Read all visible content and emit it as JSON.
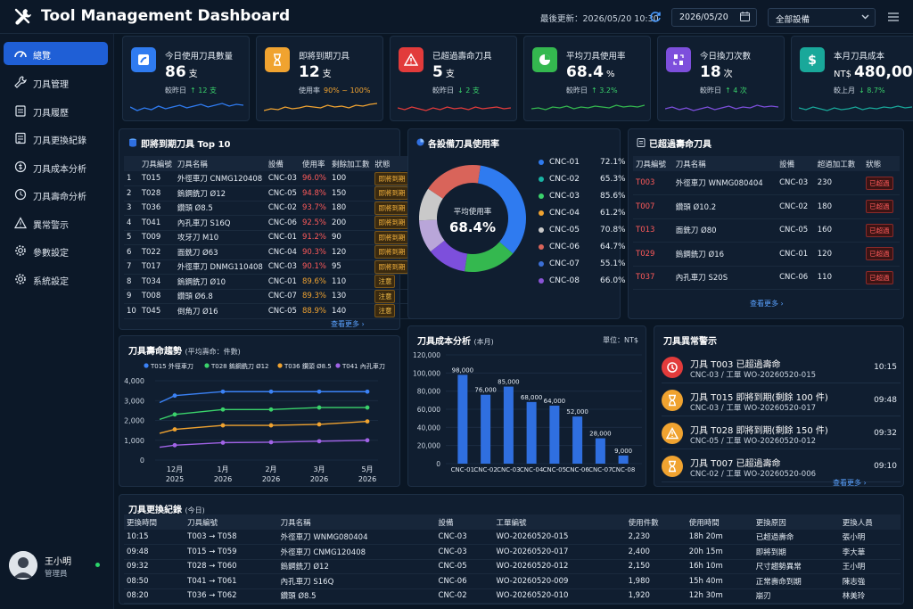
{
  "header": {
    "title": "Tool Management Dashboard",
    "last_update": "最後更新：2026/05/20 10:30",
    "date": "2026/05/20",
    "equipment_select": "全部設備"
  },
  "sidebar": {
    "items": [
      {
        "label": "總覽",
        "icon": "dashboard-icon",
        "active": true
      },
      {
        "label": "刀具管理",
        "icon": "wrench-icon"
      },
      {
        "label": "刀具履歷",
        "icon": "clipboard-icon"
      },
      {
        "label": "刀具更換紀錄",
        "icon": "swap-record-icon"
      },
      {
        "label": "刀具成本分析",
        "icon": "cost-icon"
      },
      {
        "label": "刀具壽命分析",
        "icon": "clock-icon"
      },
      {
        "label": "異常警示",
        "icon": "warning-icon"
      },
      {
        "label": "參數設定",
        "icon": "gear-icon"
      },
      {
        "label": "系統設定",
        "icon": "settings-icon"
      }
    ],
    "user": {
      "name": "王小明",
      "role": "管理員"
    }
  },
  "kpis": [
    {
      "label": "今日使用刀具數量",
      "value": "86",
      "unit": "支",
      "sub_prefix": "較昨日",
      "sub_value": "↑ 12 支",
      "color": "#2f7bf0",
      "sub_color": "#3ad26b",
      "icon": "tool-usage-icon"
    },
    {
      "label": "即將到期刀具",
      "value": "12",
      "unit": "支",
      "sub_prefix": "使用率",
      "sub_value": "90% ~ 100%",
      "color": "#f0a330",
      "sub_color": "#f0a330",
      "icon": "hourglass-icon"
    },
    {
      "label": "已超過壽命刀具",
      "value": "5",
      "unit": "支",
      "sub_prefix": "較昨日",
      "sub_value": "↓ 2 支",
      "color": "#e23b3b",
      "sub_color": "#3ad26b",
      "icon": "alert-triangle-icon"
    },
    {
      "label": "平均刀具使用率",
      "value": "68.4",
      "unit": "%",
      "sub_prefix": "較昨日",
      "sub_value": "↑ 3.2%",
      "color": "#34b84f",
      "sub_color": "#3ad26b",
      "icon": "pie-icon"
    },
    {
      "label": "今日換刀次數",
      "value": "18",
      "unit": "次",
      "sub_prefix": "較昨日",
      "sub_value": "↑ 4 次",
      "color": "#7d4fdc",
      "sub_color": "#3ad26b",
      "icon": "swap-icon"
    },
    {
      "label": "本月刀具成本",
      "value": "480,000",
      "unit_prefix": "NT$",
      "sub_prefix": "較上月",
      "sub_value": "↓ 8.7%",
      "color": "#19a89a",
      "sub_color": "#3ad26b",
      "icon": "dollar-icon"
    }
  ],
  "expiring": {
    "title": "即將到期刀具 Top 10",
    "columns": [
      "",
      "刀具編號",
      "刀具名稱",
      "設備",
      "使用率",
      "剩餘加工數",
      "狀態"
    ],
    "rows": [
      [
        "1",
        "T015",
        "外徑車刀 CNMG120408",
        "CNC-03",
        "96.0%",
        "100",
        "即將到期"
      ],
      [
        "2",
        "T028",
        "鎢鋼銑刀 Ø12",
        "CNC-05",
        "94.8%",
        "150",
        "即將到期"
      ],
      [
        "3",
        "T036",
        "鑽頭 Ø8.5",
        "CNC-02",
        "93.7%",
        "180",
        "即將到期"
      ],
      [
        "4",
        "T041",
        "內孔車刀 S16Q",
        "CNC-06",
        "92.5%",
        "200",
        "即將到期"
      ],
      [
        "5",
        "T009",
        "攻牙刀 M10",
        "CNC-01",
        "91.2%",
        "90",
        "即將到期"
      ],
      [
        "6",
        "T022",
        "面銑刀 Ø63",
        "CNC-04",
        "90.3%",
        "120",
        "即將到期"
      ],
      [
        "7",
        "T017",
        "外徑車刀 DNMG110408",
        "CNC-03",
        "90.1%",
        "95",
        "即將到期"
      ],
      [
        "8",
        "T034",
        "鎢鋼銑刀 Ø10",
        "CNC-01",
        "89.6%",
        "110",
        "注意"
      ],
      [
        "9",
        "T008",
        "鑽頭 Ø6.8",
        "CNC-07",
        "89.3%",
        "130",
        "注意"
      ],
      [
        "10",
        "T045",
        "倒角刀 Ø16",
        "CNC-05",
        "88.9%",
        "140",
        "注意"
      ]
    ],
    "more": "查看更多 ›"
  },
  "utilization": {
    "title": "各設備刀具使用率",
    "center_label": "平均使用率",
    "center_value": "68.4%"
  },
  "overdue": {
    "title": "已超過壽命刀具",
    "columns": [
      "刀具編號",
      "刀具名稱",
      "設備",
      "超過加工數",
      "狀態"
    ],
    "rows": [
      [
        "T003",
        "外徑車刀 WNMG080404",
        "CNC-03",
        "230",
        "已超過"
      ],
      [
        "T007",
        "鑽頭 Ø10.2",
        "CNC-02",
        "180",
        "已超過"
      ],
      [
        "T013",
        "面銑刀 Ø80",
        "CNC-05",
        "160",
        "已超過"
      ],
      [
        "T029",
        "鎢鋼銑刀 Ø16",
        "CNC-01",
        "120",
        "已超過"
      ],
      [
        "T037",
        "內孔車刀 S20S",
        "CNC-06",
        "110",
        "已超過"
      ]
    ],
    "more": "查看更多 ›"
  },
  "life_trend": {
    "title": "刀具壽命趨勢",
    "subtitle": "(平均壽命：件數)"
  },
  "cost": {
    "title": "刀具成本分析",
    "subtitle": "(本月)",
    "unit": "單位：NT$"
  },
  "alerts": {
    "title": "刀具異常警示",
    "items": [
      {
        "title": "刀具 T003 已超過壽命",
        "sub": "CNC-03 / 工單 WO-20260520-015",
        "time": "10:15",
        "type": "over"
      },
      {
        "title": "刀具 T015 即將到期(剩餘 100 件)",
        "sub": "CNC-03 / 工單 WO-20260520-017",
        "time": "09:48",
        "type": "soon"
      },
      {
        "title": "刀具 T028 即將到期(剩餘 150 件)",
        "sub": "CNC-05 / 工單 WO-20260520-012",
        "time": "09:32",
        "type": "warn"
      },
      {
        "title": "刀具 T007 已超過壽命",
        "sub": "CNC-02 / 工單 WO-20260520-006",
        "time": "09:10",
        "type": "soon"
      }
    ],
    "more": "查看更多 ›"
  },
  "changes": {
    "title": "刀具更換紀錄",
    "subtitle": "(今日)",
    "columns": [
      "更換時間",
      "刀具編號",
      "刀具名稱",
      "設備",
      "工單編號",
      "使用件數",
      "使用時間",
      "更換原因",
      "更換人員"
    ],
    "rows": [
      [
        "10:15",
        "T003 → T058",
        "外徑車刀 WNMG080404",
        "CNC-03",
        "WO-20260520-015",
        "2,230",
        "18h 20m",
        "已超過壽命",
        "張小明"
      ],
      [
        "09:48",
        "T015 → T059",
        "外徑車刀 CNMG120408",
        "CNC-03",
        "WO-20260520-017",
        "2,400",
        "20h 15m",
        "即將到期",
        "李大華"
      ],
      [
        "09:32",
        "T028 → T060",
        "鎢鋼銑刀 Ø12",
        "CNC-05",
        "WO-20260520-012",
        "2,150",
        "16h 10m",
        "尺寸趨勢異常",
        "王小明"
      ],
      [
        "08:50",
        "T041 → T061",
        "內孔車刀 S16Q",
        "CNC-06",
        "WO-20260520-009",
        "1,980",
        "15h 40m",
        "正常壽命到期",
        "陳志強"
      ],
      [
        "08:20",
        "T036 → T062",
        "鑽頭 Ø8.5",
        "CNC-02",
        "WO-20260520-010",
        "1,920",
        "12h 30m",
        "崩刃",
        "林美玲"
      ]
    ]
  },
  "chart_data": [
    {
      "type": "pie",
      "title": "各設備刀具使用率",
      "categories": [
        "CNC-01",
        "CNC-02",
        "CNC-03",
        "CNC-04",
        "CNC-05",
        "CNC-06",
        "CNC-07",
        "CNC-08"
      ],
      "values": [
        72.1,
        65.3,
        85.6,
        61.2,
        70.8,
        64.7,
        55.1,
        66.0
      ],
      "labels": [
        "72.1%",
        "65.3%",
        "85.6%",
        "61.2%",
        "70.8%",
        "64.7%",
        "55.1%",
        "66.0%"
      ],
      "colors": [
        "#2f7bf0",
        "#19b3a3",
        "#3ad26b",
        "#f0a330",
        "#c9c9c9",
        "#d9645a",
        "#3b6fd6",
        "#8a54d6"
      ],
      "donut_order": [
        {
          "color": "#2f7bf0",
          "value": 34
        },
        {
          "color": "#34b84f",
          "value": 16
        },
        {
          "color": "#7d4fdc",
          "value": 12
        },
        {
          "color": "#b9a6d9",
          "value": 10
        },
        {
          "color": "#c9c9c9",
          "value": 10
        },
        {
          "color": "#d9645a",
          "value": 18
        }
      ]
    },
    {
      "type": "line",
      "title": "刀具壽命趨勢",
      "x": [
        "12月\n2025",
        "1月\n2026",
        "2月\n2026",
        "3月\n2026",
        "5月\n2026"
      ],
      "xticks": [
        {
          "line1": "12月",
          "line2": "2025"
        },
        {
          "line1": "1月",
          "line2": "2026"
        },
        {
          "line1": "2月",
          "line2": "2026"
        },
        {
          "line1": "3月",
          "line2": "2026"
        },
        {
          "line1": "5月",
          "line2": "2026"
        }
      ],
      "ylim": [
        0,
        4000
      ],
      "yticks": [
        "0",
        "1,000",
        "2,000",
        "3,000",
        "4,000"
      ],
      "series": [
        {
          "name": "T015 外徑車刀",
          "color": "#3b82f6",
          "values": [
            3250,
            3450,
            3450,
            3450,
            3450
          ],
          "start": 2900
        },
        {
          "name": "T028 鎢鋼銑刀 Ø12",
          "color": "#3ad26b",
          "values": [
            2300,
            2550,
            2550,
            2650,
            2650
          ],
          "start": 2050
        },
        {
          "name": "T036 鑽頭 Ø8.5",
          "color": "#f0a330",
          "values": [
            1550,
            1750,
            1750,
            1800,
            1950
          ],
          "start": 1350
        },
        {
          "name": "T041 內孔車刀",
          "color": "#a063e6",
          "values": [
            750,
            880,
            900,
            950,
            1000
          ],
          "start": 650
        }
      ]
    },
    {
      "type": "bar",
      "title": "刀具成本分析",
      "categories": [
        "CNC-01",
        "CNC-02",
        "CNC-03",
        "CNC-04",
        "CNC-05",
        "CNC-06",
        "CNC-07",
        "CNC-08"
      ],
      "values": [
        98000,
        76000,
        85000,
        68000,
        64000,
        52000,
        28000,
        9000
      ],
      "labels": [
        "98,000",
        "76,000",
        "85,000",
        "68,000",
        "64,000",
        "52,000",
        "28,000",
        "9,000"
      ],
      "ylim": [
        0,
        120000
      ],
      "yticks": [
        "0",
        "20,000",
        "40,000",
        "60,000",
        "80,000",
        "100,000",
        "120,000"
      ],
      "color": "#2f6fe0"
    }
  ]
}
